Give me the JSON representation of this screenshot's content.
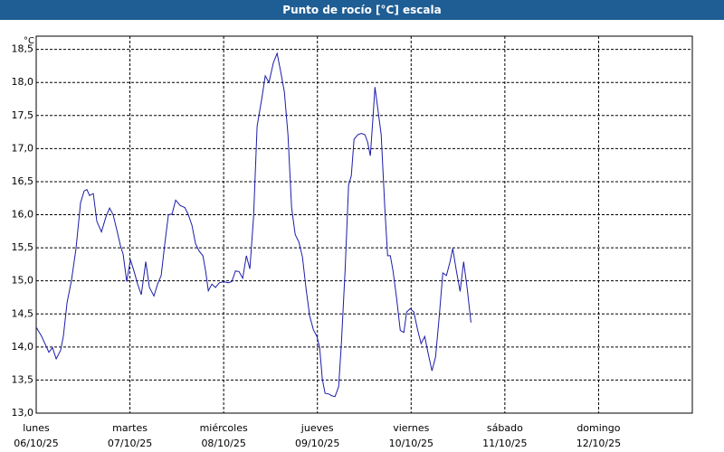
{
  "chart_data": {
    "type": "line",
    "title": "Punto de rocío [°C] escala",
    "y_unit": "°C",
    "xlim": [
      0,
      7
    ],
    "ylim": [
      13,
      18.7
    ],
    "xticks": [
      {
        "value": 0,
        "label": "lunes"
      },
      {
        "value": 1,
        "label": "martes"
      },
      {
        "value": 2,
        "label": "miércoles"
      },
      {
        "value": 3,
        "label": "jueves"
      },
      {
        "value": 4,
        "label": "viernes"
      },
      {
        "value": 5,
        "label": "sábado"
      },
      {
        "value": 6,
        "label": "domingo"
      }
    ],
    "xtick_dates": [
      "06/10/25",
      "07/10/25",
      "08/10/25",
      "09/10/25",
      "10/10/25",
      "11/10/25",
      "12/10/25"
    ],
    "yticks": [
      {
        "value": 13,
        "label": "13,0"
      },
      {
        "value": 13.5,
        "label": "13,5"
      },
      {
        "value": 14,
        "label": "14,0"
      },
      {
        "value": 14.5,
        "label": "14,5"
      },
      {
        "value": 15,
        "label": "15,0"
      },
      {
        "value": 15.5,
        "label": "15,5"
      },
      {
        "value": 16,
        "label": "16,0"
      },
      {
        "value": 16.5,
        "label": "16,5"
      },
      {
        "value": 17,
        "label": "17,0"
      },
      {
        "value": 17.5,
        "label": "17,5"
      },
      {
        "value": 18,
        "label": "18,0"
      },
      {
        "value": 18.5,
        "label": "18,5"
      }
    ],
    "grid": true,
    "series": [
      {
        "color": "#1c1ca8",
        "x": [
          0,
          0.058,
          0.135,
          0.174,
          0.213,
          0.261,
          0.29,
          0.329,
          0.377,
          0.425,
          0.473,
          0.512,
          0.541,
          0.57,
          0.609,
          0.647,
          0.696,
          0.744,
          0.783,
          0.821,
          0.86,
          0.899,
          0.928,
          0.966,
          1.005,
          1.043,
          1.082,
          1.121,
          1.169,
          1.208,
          1.256,
          1.295,
          1.333,
          1.372,
          1.411,
          1.449,
          1.488,
          1.536,
          1.585,
          1.623,
          1.662,
          1.7,
          1.739,
          1.778,
          1.807,
          1.836,
          1.874,
          1.913,
          1.952,
          2.0,
          2.048,
          2.087,
          2.126,
          2.164,
          2.203,
          2.242,
          2.28,
          2.319,
          2.357,
          2.406,
          2.444,
          2.483,
          2.531,
          2.57,
          2.609,
          2.647,
          2.686,
          2.725,
          2.763,
          2.802,
          2.841,
          2.879,
          2.918,
          2.957,
          2.995,
          3.024,
          3.053,
          3.082,
          3.121,
          3.159,
          3.188,
          3.227,
          3.256,
          3.295,
          3.333,
          3.362,
          3.391,
          3.43,
          3.469,
          3.507,
          3.536,
          3.565,
          3.594,
          3.614,
          3.643,
          3.681,
          3.72,
          3.749,
          3.778,
          3.807,
          3.845,
          3.884,
          3.923,
          3.952,
          3.99,
          4.029,
          4.068,
          4.106,
          4.145,
          4.184,
          4.222,
          4.261,
          4.3,
          4.338,
          4.377,
          4.415,
          4.444,
          4.483,
          4.522,
          4.56,
          4.599,
          4.638
        ],
        "values": [
          14.3,
          14.16,
          13.92,
          13.99,
          13.82,
          13.95,
          14.16,
          14.67,
          15.01,
          15.49,
          16.18,
          16.36,
          16.38,
          16.29,
          16.32,
          15.9,
          15.74,
          15.97,
          16.1,
          16.0,
          15.77,
          15.53,
          15.4,
          14.99,
          15.32,
          15.15,
          14.95,
          14.79,
          15.29,
          14.9,
          14.77,
          14.95,
          15.08,
          15.56,
          16.0,
          16.01,
          16.22,
          16.14,
          16.11,
          16.0,
          15.84,
          15.56,
          15.45,
          15.38,
          15.15,
          14.85,
          14.95,
          14.9,
          14.97,
          14.99,
          14.97,
          14.99,
          15.15,
          15.14,
          15.04,
          15.38,
          15.18,
          15.97,
          17.34,
          17.75,
          18.1,
          18.0,
          18.3,
          18.44,
          18.16,
          17.86,
          17.21,
          16.11,
          15.7,
          15.59,
          15.36,
          14.88,
          14.47,
          14.26,
          14.16,
          13.99,
          13.51,
          13.3,
          13.29,
          13.26,
          13.25,
          13.4,
          14.05,
          15.15,
          16.45,
          16.59,
          17.14,
          17.21,
          17.23,
          17.21,
          17.1,
          16.89,
          17.48,
          17.93,
          17.62,
          17.21,
          16.08,
          15.38,
          15.38,
          15.15,
          14.74,
          14.25,
          14.22,
          14.53,
          14.58,
          14.53,
          14.27,
          14.05,
          14.16,
          13.89,
          13.64,
          13.85,
          14.47,
          15.12,
          15.08,
          15.29,
          15.49,
          15.15,
          14.84,
          15.29,
          14.88,
          14.37
        ]
      }
    ]
  }
}
